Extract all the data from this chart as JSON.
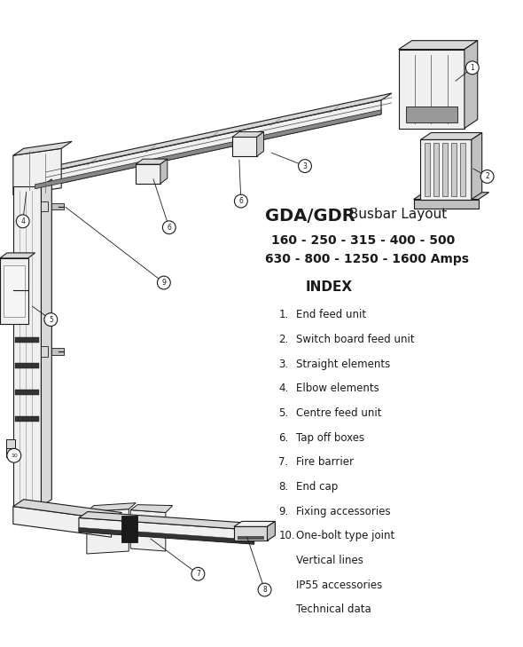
{
  "title_bold": "GDA/GDR",
  "title_normal": " Busbar Layout",
  "subtitle1": "160 - 250 - 315 - 400 - 500",
  "subtitle2": "630 - 800 - 1250 - 1600 Amps",
  "index_title": "INDEX",
  "index_items": [
    [
      "1.",
      "End feed unit"
    ],
    [
      "2.",
      "Switch board feed unit"
    ],
    [
      "3.",
      "Straight elements"
    ],
    [
      "4.",
      "Elbow elements"
    ],
    [
      "5.",
      "Centre feed unit"
    ],
    [
      "6.",
      "Tap off boxes"
    ],
    [
      "7.",
      "Fire barrier"
    ],
    [
      "8.",
      "End cap"
    ],
    [
      "9.",
      "Fixing accessories"
    ],
    [
      "10.",
      "One-bolt type joint"
    ],
    [
      "",
      "Vertical lines"
    ],
    [
      "",
      "IP55 accessories"
    ],
    [
      "",
      "Technical data"
    ]
  ],
  "bg_color": "#ffffff",
  "dark": "#1a1a1a",
  "face1": "#f0f0f0",
  "face2": "#d8d8d8",
  "face3": "#c0c0c0",
  "black_fill": "#1a1a1a"
}
